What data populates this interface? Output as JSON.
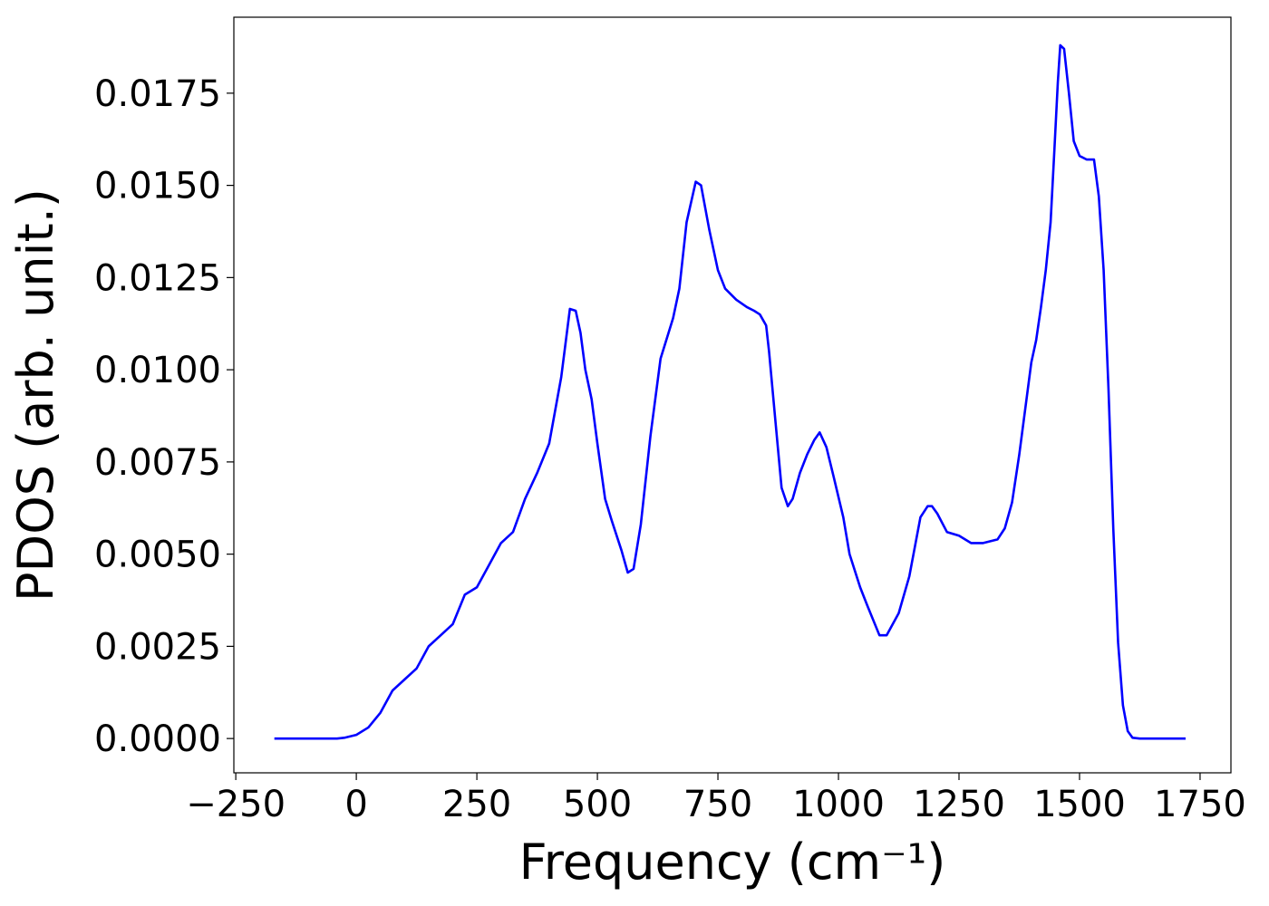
{
  "chart_data": {
    "type": "line",
    "xlabel": "Frequency (cm⁻¹)",
    "ylabel": "PDOS (arb. unit.)",
    "x": [
      -170,
      -150,
      -125,
      -100,
      -75,
      -50,
      -40,
      -25,
      0,
      25,
      50,
      75,
      100,
      125,
      150,
      175,
      200,
      225,
      250,
      275,
      300,
      325,
      350,
      375,
      400,
      425,
      443,
      455,
      465,
      475,
      488,
      500,
      516,
      530,
      550,
      563,
      575,
      590,
      610,
      631,
      657,
      670,
      685,
      704,
      715,
      732,
      750,
      765,
      788,
      810,
      825,
      837,
      850,
      856,
      870,
      882,
      895,
      905,
      920,
      935,
      950,
      961,
      975,
      990,
      1010,
      1023,
      1045,
      1060,
      1085,
      1100,
      1125,
      1147,
      1170,
      1185,
      1194,
      1205,
      1225,
      1250,
      1275,
      1300,
      1330,
      1345,
      1360,
      1375,
      1390,
      1400,
      1410,
      1420,
      1430,
      1440,
      1448,
      1455,
      1460,
      1468,
      1478,
      1488,
      1500,
      1515,
      1530,
      1540,
      1550,
      1560,
      1570,
      1580,
      1590,
      1600,
      1610,
      1625,
      1650,
      1720
    ],
    "series": [
      {
        "name": "PDOS",
        "color": "#0000ff",
        "values": [
          0,
          0,
          0,
          0,
          0,
          0,
          0,
          2e-05,
          0.0001,
          0.0003,
          0.0007,
          0.0013,
          0.0016,
          0.0019,
          0.0025,
          0.0028,
          0.0031,
          0.0039,
          0.0041,
          0.0047,
          0.0053,
          0.0056,
          0.0065,
          0.0072,
          0.008,
          0.0098,
          0.01165,
          0.0116,
          0.011,
          0.01,
          0.0092,
          0.008,
          0.0065,
          0.0059,
          0.0051,
          0.0045,
          0.0046,
          0.0058,
          0.0082,
          0.0103,
          0.0114,
          0.0122,
          0.014,
          0.0151,
          0.015,
          0.0138,
          0.0127,
          0.0122,
          0.0119,
          0.0117,
          0.0116,
          0.0115,
          0.0112,
          0.0105,
          0.0085,
          0.0068,
          0.0063,
          0.0065,
          0.0072,
          0.0077,
          0.0081,
          0.0083,
          0.0079,
          0.0071,
          0.006,
          0.005,
          0.0041,
          0.0036,
          0.0028,
          0.0028,
          0.0034,
          0.0044,
          0.006,
          0.0063,
          0.0063,
          0.0061,
          0.0056,
          0.0055,
          0.0053,
          0.0053,
          0.0054,
          0.0057,
          0.0064,
          0.0077,
          0.0092,
          0.0102,
          0.0108,
          0.0117,
          0.0127,
          0.014,
          0.016,
          0.0178,
          0.0188,
          0.0187,
          0.0175,
          0.0162,
          0.0158,
          0.0157,
          0.0157,
          0.0147,
          0.0127,
          0.0095,
          0.0057,
          0.0026,
          0.0009,
          0.0002,
          2e-05,
          0,
          0,
          0
        ]
      }
    ],
    "xlim": [
      -254,
      1814
    ],
    "ylim": [
      -0.00093,
      0.01956
    ],
    "xticks": [
      {
        "value": -250,
        "label": "−250"
      },
      0,
      250,
      500,
      750,
      1000,
      1250,
      1500,
      1750
    ],
    "yticks": [
      {
        "value": 0,
        "label": "0.0000"
      },
      {
        "value": 0.0025,
        "label": "0.0025"
      },
      {
        "value": 0.005,
        "label": "0.0050"
      },
      {
        "value": 0.0075,
        "label": "0.0075"
      },
      {
        "value": 0.01,
        "label": "0.0100"
      },
      {
        "value": 0.0125,
        "label": "0.0125"
      },
      {
        "value": 0.015,
        "label": "0.0150"
      },
      {
        "value": 0.0175,
        "label": "0.0175"
      }
    ],
    "grid": false
  }
}
